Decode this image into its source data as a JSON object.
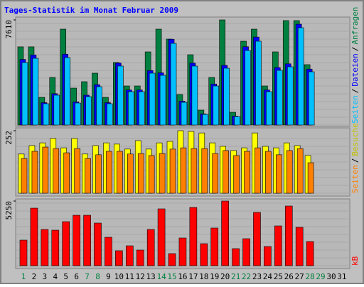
{
  "chart_data": {
    "type": "bar",
    "title": "Tages-Statistik im Monat Februar 2009",
    "legend_separator": "/",
    "categories": [
      "1",
      "2",
      "3",
      "4",
      "5",
      "6",
      "7",
      "8",
      "9",
      "10",
      "11",
      "12",
      "13",
      "14",
      "15",
      "16",
      "17",
      "18",
      "19",
      "20",
      "21",
      "22",
      "23",
      "24",
      "25",
      "26",
      "27",
      "28",
      "29",
      "30",
      "31"
    ],
    "category_colors": [
      "#008040",
      "#000000",
      "#000000",
      "#000000",
      "#000000",
      "#000000",
      "#008040",
      "#008040",
      "#000000",
      "#000000",
      "#000000",
      "#000000",
      "#000000",
      "#008040",
      "#008040",
      "#000000",
      "#000000",
      "#000000",
      "#000000",
      "#000000",
      "#008040",
      "#008040",
      "#000000",
      "#000000",
      "#000000",
      "#000000",
      "#000000",
      "#008040",
      "#008040",
      "#000000",
      "#000000"
    ],
    "panels": [
      {
        "ylim": [
          0,
          7610
        ],
        "yticks": [
          7610
        ],
        "series": [
          {
            "name": "Anfragen",
            "color": "#008040",
            "values": [
              5660,
              5660,
              2005,
              3445,
              6941,
              2674,
              3137,
              3754,
              2005,
              4525,
              2828,
              2828,
              5296,
              6941,
              6222,
              2211,
              5090,
              1080,
              3445,
              7610,
              926,
              6067,
              6941,
              2828,
              5296,
              7560,
              7560,
              4371,
              null,
              null,
              null
            ]
          },
          {
            "name": "Dateien",
            "color": "#0000ff",
            "values": [
              4750,
              5070,
              1620,
              2270,
              5130,
              1670,
              2160,
              2920,
              1620,
              4480,
              2540,
              2540,
              3940,
              3780,
              6210,
              1730,
              4480,
              810,
              2970,
              4320,
              650,
              5670,
              6370,
              2540,
              4160,
              4430,
              7300,
              4050,
              null,
              null,
              null
            ]
          },
          {
            "name": "Seiten",
            "color": "#00c0ff",
            "values": [
              4525,
              4833,
              1543,
              2160,
              4885,
              1594,
              2057,
              2777,
              1543,
              4268,
              2417,
              2417,
              3754,
              3599,
              5913,
              1645,
              4268,
              771,
              2828,
              4113,
              617,
              5399,
              6067,
              2417,
              3959,
              4216,
              7044,
              3856,
              null,
              null,
              null
            ]
          }
        ]
      },
      {
        "ylim": [
          0,
          252
        ],
        "yticks": [
          252
        ],
        "series": [
          {
            "name": "Besuche",
            "color": "#ffff00",
            "values": [
              158,
              192,
              203,
              221,
              183,
              221,
              158,
              192,
              203,
              198,
              178,
              212,
              178,
              203,
              209,
              252,
              249,
              243,
              203,
              189,
              172,
              183,
              243,
              189,
              183,
              203,
              192,
              152,
              null,
              null,
              null
            ]
          },
          {
            "name": "Seiten",
            "color": "#ff8000",
            "values": [
              140,
              169,
              186,
              180,
              163,
              180,
              140,
              155,
              169,
              169,
              158,
              160,
              152,
              160,
              178,
              183,
              180,
              180,
              160,
              172,
              152,
              169,
              183,
              169,
              155,
              172,
              180,
              123,
              null,
              null,
              null
            ]
          }
        ]
      },
      {
        "ylim": [
          0,
          5250
        ],
        "yticks": [
          5250
        ],
        "series": [
          {
            "name": "kB",
            "color": "#ff0000",
            "values": [
              2077,
              4673,
              2942,
              2885,
              3577,
              4096,
              4096,
              3462,
              2308,
              1212,
              1615,
              1269,
              2942,
              4615,
              981,
              2250,
              4731,
              1788,
              3058,
              5250,
              1385,
              2192,
              4327,
              1558,
              3231,
              4846,
              3115,
              1962,
              null,
              null,
              null
            ]
          }
        ]
      }
    ]
  }
}
